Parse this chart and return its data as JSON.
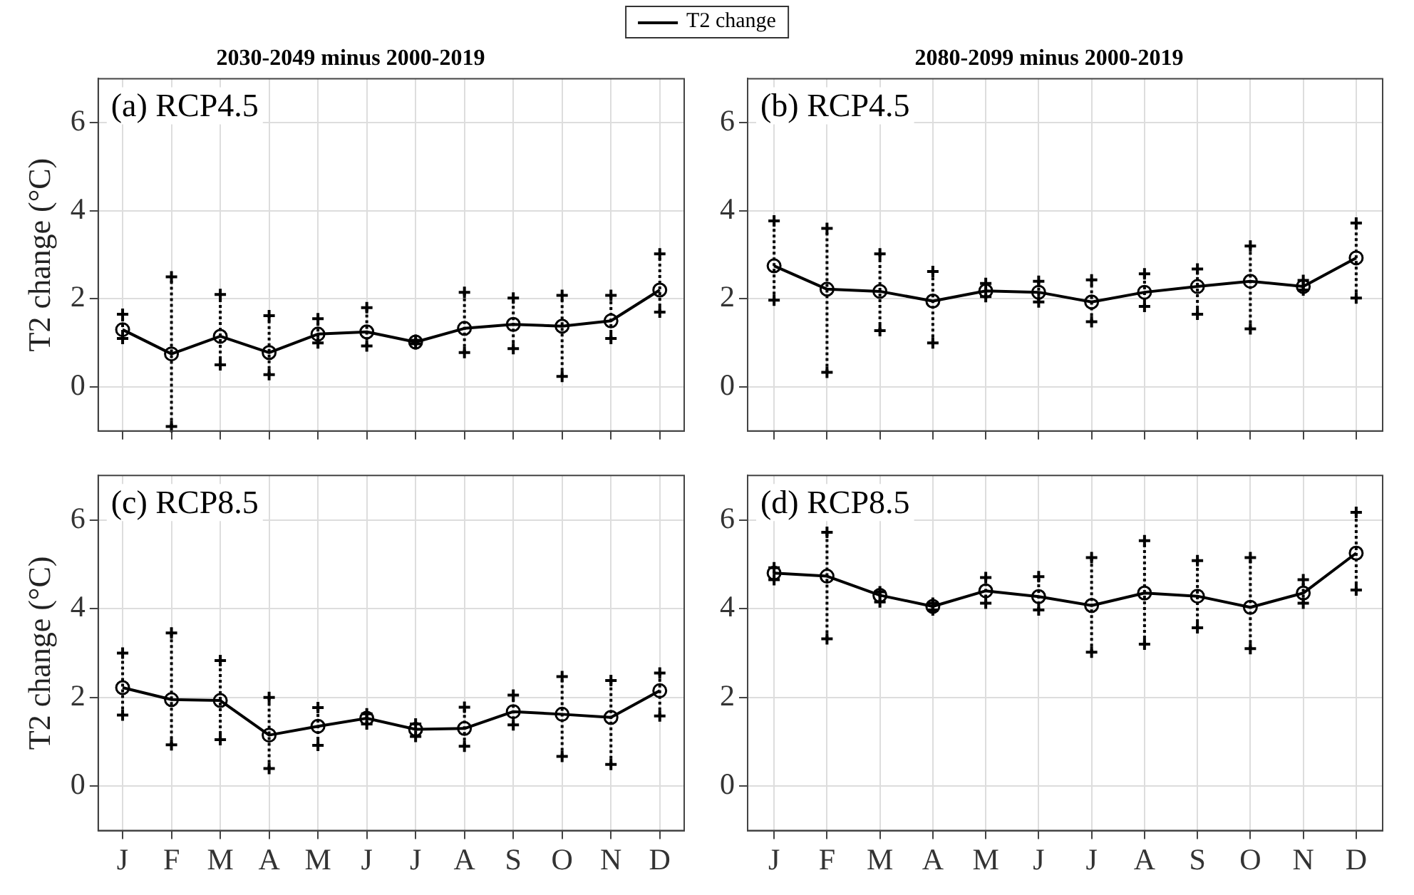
{
  "chart_data": [
    {
      "type": "line",
      "title": "2030-2049 minus 2000-2019",
      "ylabel": "T2 change (°C)",
      "annotations": [
        "(a) RCP4.5"
      ],
      "categories": [
        null,
        null,
        null,
        null,
        null,
        null,
        null,
        null,
        null,
        null,
        null,
        null
      ],
      "series": [
        {
          "name": "T2 change",
          "color": "#000000",
          "values": [
            1.3,
            0.75,
            1.15,
            0.78,
            1.2,
            1.25,
            1.02,
            1.33,
            1.42,
            1.38,
            1.5,
            2.2
          ],
          "errors": [
            [
              1.1,
              1.65
            ],
            [
              -0.9,
              2.5
            ],
            [
              0.5,
              2.1
            ],
            [
              0.28,
              1.62
            ],
            [
              1.0,
              1.55
            ],
            [
              0.93,
              1.8
            ],
            [
              0.98,
              1.06
            ],
            [
              0.78,
              2.15
            ],
            [
              0.87,
              2.02
            ],
            [
              0.24,
              2.08
            ],
            [
              1.1,
              2.08
            ],
            [
              1.7,
              3.02
            ]
          ]
        }
      ],
      "ylim": [
        -1,
        7
      ],
      "yticks": [
        0,
        2,
        4,
        6
      ],
      "grid": true,
      "legend": "top",
      "tick_labels": "y",
      "marker": "circle"
    },
    {
      "type": "line",
      "title": "2080-2099 minus 2000-2019",
      "annotations": [
        "(b) RCP4.5"
      ],
      "categories": [
        null,
        null,
        null,
        null,
        null,
        null,
        null,
        null,
        null,
        null,
        null,
        null
      ],
      "series": [
        {
          "color": "#000000",
          "values": [
            2.75,
            2.22,
            2.17,
            1.95,
            2.18,
            2.15,
            1.93,
            2.15,
            2.28,
            2.4,
            2.28,
            2.93
          ],
          "errors": [
            [
              1.97,
              3.77
            ],
            [
              0.33,
              3.6
            ],
            [
              1.28,
              3.02
            ],
            [
              1.0,
              2.62
            ],
            [
              2.05,
              2.35
            ],
            [
              1.93,
              2.4
            ],
            [
              1.48,
              2.43
            ],
            [
              1.83,
              2.57
            ],
            [
              1.65,
              2.68
            ],
            [
              1.32,
              3.2
            ],
            [
              2.2,
              2.42
            ],
            [
              2.02,
              3.72
            ]
          ]
        }
      ],
      "ylim": [
        -1,
        7
      ],
      "yticks": [
        0,
        2,
        4,
        6
      ],
      "grid": true,
      "tick_labels": "y",
      "marker": "circle"
    },
    {
      "type": "line",
      "ylabel": "T2 change (°C)",
      "annotations": [
        "(c) RCP8.5"
      ],
      "categories": [
        "J",
        "F",
        "M",
        "A",
        "M",
        "J",
        "J",
        "A",
        "S",
        "O",
        "N",
        "D"
      ],
      "series": [
        {
          "color": "#000000",
          "values": [
            2.22,
            1.95,
            1.93,
            1.15,
            1.35,
            1.53,
            1.28,
            1.3,
            1.68,
            1.62,
            1.55,
            2.15
          ],
          "errors": [
            [
              1.6,
              3.0
            ],
            [
              0.93,
              3.45
            ],
            [
              1.05,
              2.83
            ],
            [
              0.4,
              2.0
            ],
            [
              0.92,
              1.77
            ],
            [
              1.4,
              1.63
            ],
            [
              1.12,
              1.4
            ],
            [
              0.9,
              1.78
            ],
            [
              1.38,
              2.05
            ],
            [
              0.67,
              2.47
            ],
            [
              0.49,
              2.38
            ],
            [
              1.58,
              2.55
            ]
          ]
        }
      ],
      "ylim": [
        -1,
        7
      ],
      "yticks": [
        0,
        2,
        4,
        6
      ],
      "grid": true,
      "marker": "circle"
    },
    {
      "type": "line",
      "annotations": [
        "(d) RCP8.5"
      ],
      "categories": [
        "J",
        "F",
        "M",
        "A",
        "M",
        "J",
        "J",
        "A",
        "S",
        "O",
        "N",
        "D"
      ],
      "series": [
        {
          "color": "#000000",
          "values": [
            4.8,
            4.73,
            4.3,
            4.05,
            4.4,
            4.27,
            4.07,
            4.35,
            4.28,
            4.03,
            4.35,
            5.25
          ],
          "errors": [
            [
              4.65,
              4.92
            ],
            [
              3.32,
              5.72
            ],
            [
              4.15,
              4.38
            ],
            [
              3.97,
              4.12
            ],
            [
              4.12,
              4.7
            ],
            [
              3.97,
              4.72
            ],
            [
              3.02,
              5.15
            ],
            [
              3.2,
              5.53
            ],
            [
              3.57,
              5.08
            ],
            [
              3.1,
              5.15
            ],
            [
              4.12,
              4.65
            ],
            [
              4.42,
              6.17
            ]
          ]
        }
      ],
      "ylim": [
        -1,
        7
      ],
      "yticks": [
        0,
        2,
        4,
        6
      ],
      "grid": true,
      "marker": "circle"
    }
  ]
}
